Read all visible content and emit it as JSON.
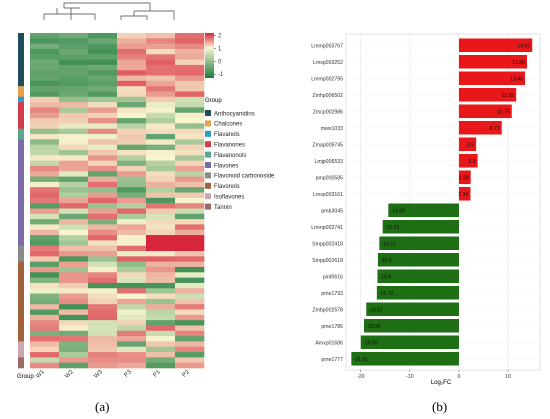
{
  "panel_labels": [
    "(a)",
    "(b)"
  ],
  "chart_data": [
    {
      "type": "heatmap",
      "columns": [
        "W1",
        "W2",
        "W3",
        "P3",
        "P1",
        "P2"
      ],
      "column_axis_label": "Group",
      "colorbar": {
        "ticks": [
          2,
          1,
          0,
          -1
        ],
        "low_color": "#1a7a3c",
        "mid_color": "#f7f5d0",
        "high_color": "#d7263d"
      },
      "legend_title": "Group",
      "groups": [
        {
          "name": "Anthocyanidins",
          "color": "#1f4e5a",
          "rows": 10
        },
        {
          "name": "Chalcones",
          "color": "#e8a14b",
          "rows": 2
        },
        {
          "name": "Flavanols",
          "color": "#2b9bc9",
          "rows": 1
        },
        {
          "name": "Flavanones",
          "color": "#d13d4a",
          "rows": 5
        },
        {
          "name": "Flavanonols",
          "color": "#5aa890",
          "rows": 2
        },
        {
          "name": "Flavones",
          "color": "#7b6aa8",
          "rows": 20
        },
        {
          "name": "Flavonoid carbonoside",
          "color": "#8a8a8a",
          "rows": 3
        },
        {
          "name": "Flavonols",
          "color": "#a0623a",
          "rows": 15
        },
        {
          "name": "Isoflavones",
          "color": "#c7a7b0",
          "rows": 3
        },
        {
          "name": "Tannin",
          "color": "#9b6a60",
          "rows": 2
        }
      ]
    },
    {
      "type": "bar",
      "orientation": "horizontal",
      "categories": [
        "Lmmp003767",
        "Lmsp003252",
        "Lmmp002795",
        "Zmhp006502",
        "Zmcp002986",
        "mws1033",
        "Zmap009745",
        "Lmjp006533",
        "pmp000585",
        "Lmsp003161",
        "pmb3045",
        "Lmmp002741",
        "Smpp002418",
        "Smpp002618",
        "pmf0616",
        "pme1793",
        "Zmbp002578",
        "pme1786",
        "Amxp01686",
        "pme1777"
      ],
      "values": [
        14.92,
        13.86,
        13.46,
        11.65,
        10.75,
        8.71,
        3.5,
        3.8,
        2.39,
        2.34,
        -14.38,
        -15.53,
        -16.21,
        -16.5,
        -16.6,
        -16.72,
        -18.87,
        -19.34,
        -19.99,
        -21.91
      ],
      "value_labels": [
        "14.92",
        "13.86",
        "13.46",
        "11.65",
        "10.75",
        "8.71",
        "3.5",
        "3.8",
        "2.39",
        "2.34",
        "-14.38",
        "-15.53",
        "-16.21",
        "-16.5",
        "-16.6",
        "-16.72",
        "-18.87",
        "-19.34",
        "-19.99",
        "-21.91"
      ],
      "xlabel": "Log₂FC",
      "xlim": [
        -23,
        16.5
      ],
      "xticks": [
        -20,
        -10,
        0,
        10
      ],
      "grid": true,
      "positive_color": "#e8171a",
      "negative_color": "#1e6e14"
    }
  ]
}
